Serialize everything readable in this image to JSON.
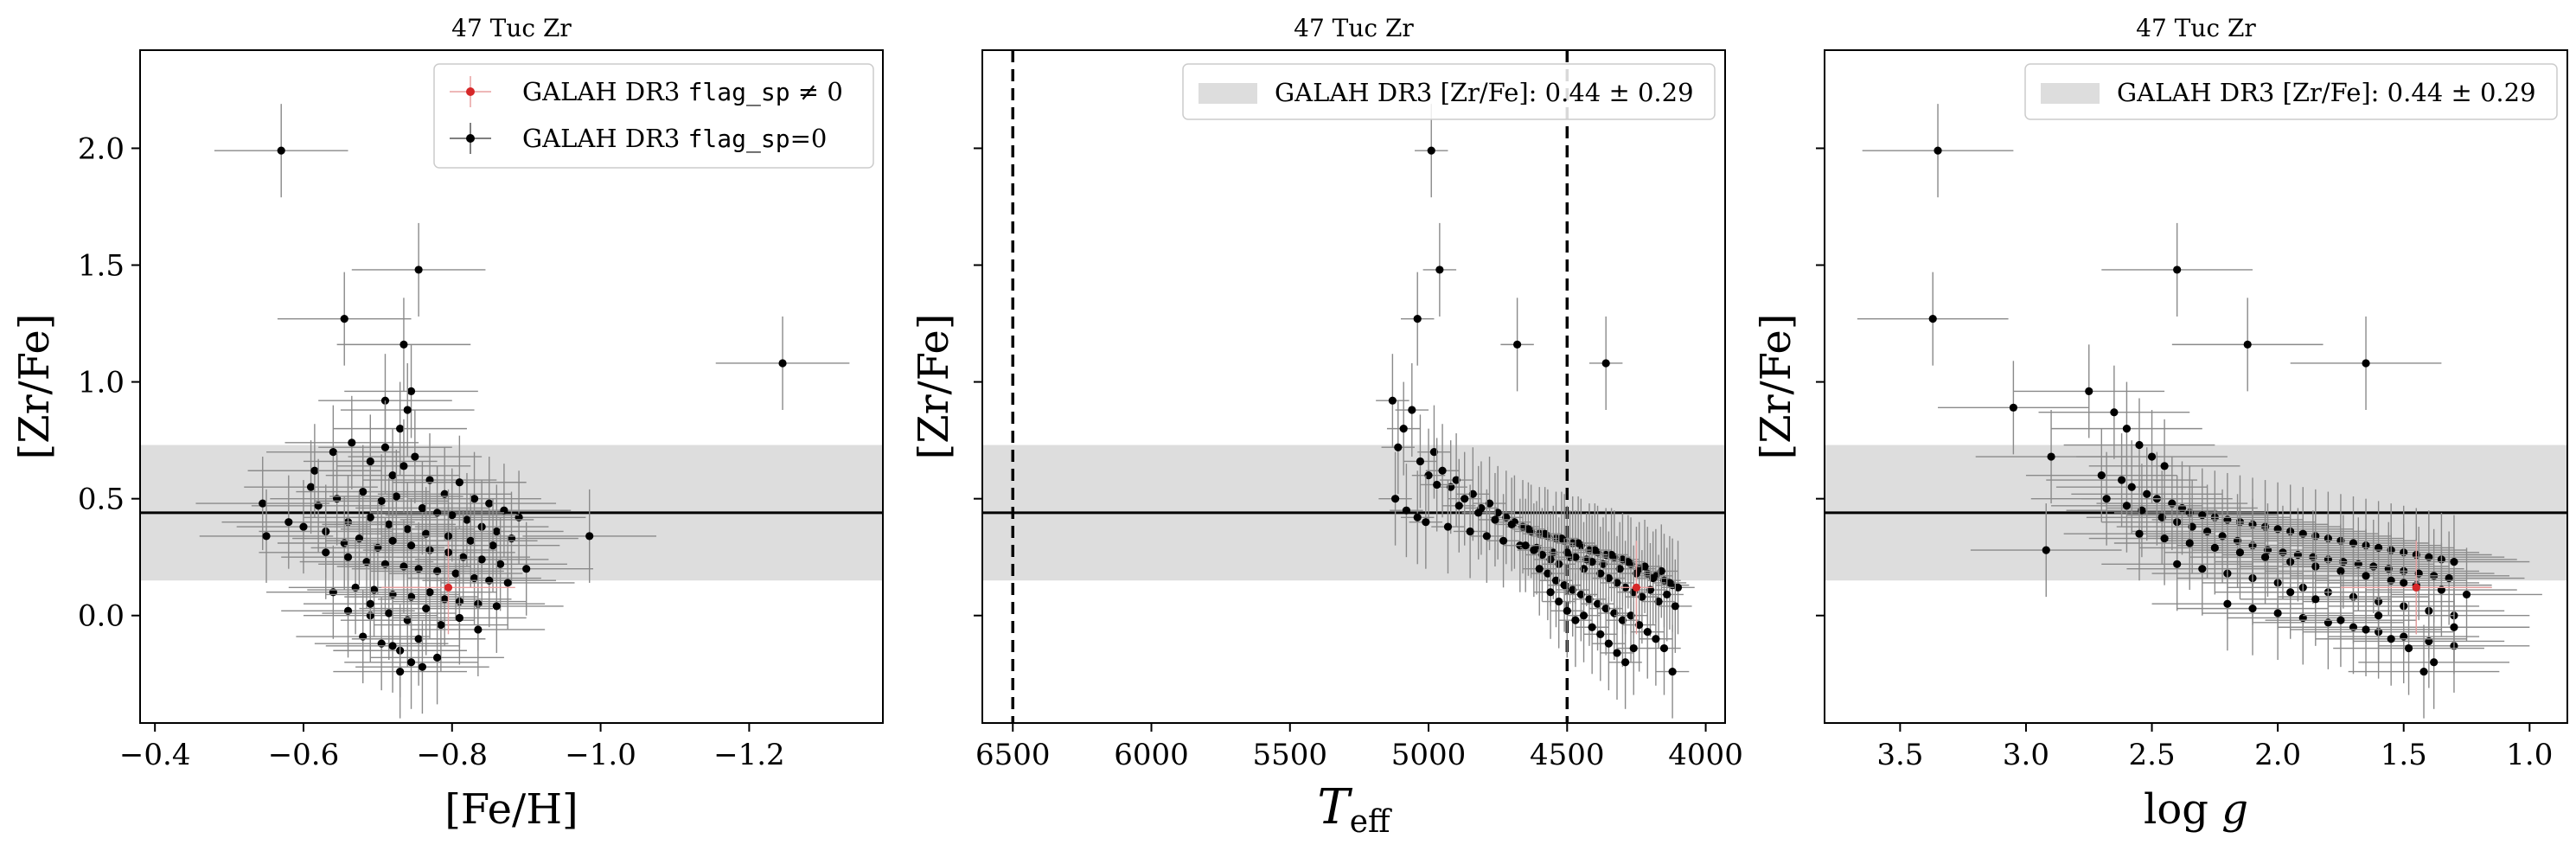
{
  "chart_data": [
    {
      "type": "scatter",
      "title": "47 Tuc Zr",
      "xlabel": "[Fe/H]",
      "ylabel": "[Zr/Fe]",
      "xlim": [
        -0.38,
        -1.38
      ],
      "ylim": [
        -0.46,
        2.42
      ],
      "x_inverted": true,
      "xticks": [
        -0.4,
        -0.6,
        -0.8,
        -1.0,
        -1.2
      ],
      "xtick_labels": [
        "−0.4",
        "−0.6",
        "−0.8",
        "−1.0",
        "−1.2"
      ],
      "yticks": [
        0.0,
        0.5,
        1.0,
        1.5,
        2.0
      ],
      "ytick_labels": [
        "0.0",
        "0.5",
        "1.0",
        "1.5",
        "2.0"
      ],
      "show_ytick_labels": true,
      "hline": 0.44,
      "band": [
        0.15,
        0.73
      ],
      "legend": {
        "placement": "top-right",
        "entries": [
          {
            "label": "GALAH DR3 ",
            "code": "flag_sp",
            "suffix": " ≠ 0",
            "color": "#d62728",
            "marker": "errorbar"
          },
          {
            "label": "GALAH DR3 ",
            "code": "flag_sp",
            "suffix": "=0",
            "color": "#000000",
            "marker": "errorbar"
          }
        ]
      },
      "series": [
        {
          "name": "GALAH DR3 flag_sp=0",
          "color": "#000000",
          "x": [
            -0.57,
            -0.655,
            -0.755,
            -1.245,
            -0.735,
            -0.71,
            -0.745,
            -0.74,
            -0.73,
            -0.61,
            -0.615,
            -0.64,
            -0.665,
            -0.69,
            -0.71,
            -0.72,
            -0.735,
            -0.75,
            -0.77,
            -0.79,
            -0.81,
            -0.83,
            -0.85,
            -0.87,
            -0.89,
            -0.62,
            -0.645,
            -0.68,
            -0.705,
            -0.725,
            -0.76,
            -0.78,
            -0.8,
            -0.82,
            -0.84,
            -0.86,
            -0.88,
            -0.66,
            -0.69,
            -0.715,
            -0.74,
            -0.765,
            -0.795,
            -0.825,
            -0.855,
            -0.545,
            -0.55,
            -0.58,
            -0.6,
            -0.63,
            -0.655,
            -0.675,
            -0.7,
            -0.72,
            -0.745,
            -0.77,
            -0.795,
            -0.815,
            -0.84,
            -0.865,
            -0.9,
            -0.985,
            -0.63,
            -0.66,
            -0.685,
            -0.71,
            -0.735,
            -0.755,
            -0.78,
            -0.805,
            -0.83,
            -0.85,
            -0.875,
            -0.64,
            -0.67,
            -0.695,
            -0.72,
            -0.745,
            -0.77,
            -0.79,
            -0.81,
            -0.835,
            -0.86,
            -0.66,
            -0.69,
            -0.715,
            -0.74,
            -0.765,
            -0.785,
            -0.81,
            -0.835,
            -0.68,
            -0.705,
            -0.73,
            -0.755,
            -0.78,
            -0.72,
            -0.745,
            -0.69,
            -0.73,
            -0.76
          ],
          "y": [
            1.99,
            1.27,
            1.48,
            1.08,
            1.16,
            0.92,
            0.96,
            0.88,
            0.8,
            0.55,
            0.62,
            0.7,
            0.74,
            0.66,
            0.72,
            0.6,
            0.64,
            0.68,
            0.58,
            0.52,
            0.57,
            0.5,
            0.48,
            0.45,
            0.42,
            0.47,
            0.5,
            0.53,
            0.49,
            0.51,
            0.46,
            0.44,
            0.43,
            0.41,
            0.38,
            0.36,
            0.33,
            0.4,
            0.42,
            0.39,
            0.37,
            0.35,
            0.34,
            0.32,
            0.3,
            0.48,
            0.34,
            0.4,
            0.38,
            0.36,
            0.31,
            0.33,
            0.29,
            0.32,
            0.3,
            0.28,
            0.27,
            0.25,
            0.24,
            0.22,
            0.2,
            0.34,
            0.27,
            0.25,
            0.23,
            0.22,
            0.21,
            0.2,
            0.19,
            0.18,
            0.16,
            0.15,
            0.14,
            0.1,
            0.12,
            0.11,
            0.09,
            0.08,
            0.1,
            0.07,
            0.06,
            0.05,
            0.04,
            0.02,
            0.0,
            0.01,
            -0.02,
            0.03,
            -0.04,
            -0.01,
            -0.06,
            -0.09,
            -0.12,
            -0.15,
            -0.1,
            -0.18,
            -0.13,
            -0.2,
            0.05,
            -0.24,
            -0.22
          ],
          "xerr": 0.09,
          "yerr": 0.2
        },
        {
          "name": "GALAH DR3 flag_sp ≠ 0",
          "color": "#d62728",
          "x": [
            -0.795
          ],
          "y": [
            0.12
          ],
          "xerr": 0.09,
          "yerr": 0.2
        }
      ]
    },
    {
      "type": "scatter",
      "title": "47 Tuc Zr",
      "xlabel": "T_eff",
      "xlabel_main": "T",
      "xlabel_sub": "eff",
      "ylabel": "[Zr/Fe]",
      "xlim": [
        6610,
        3930
      ],
      "ylim": [
        -0.46,
        2.42
      ],
      "x_inverted": true,
      "xticks": [
        6500,
        6000,
        5500,
        5000,
        4500,
        4000
      ],
      "xtick_labels": [
        "6500",
        "6000",
        "5500",
        "5000",
        "4500",
        "4000"
      ],
      "yticks": [
        0.0,
        0.5,
        1.0,
        1.5,
        2.0
      ],
      "show_ytick_labels": false,
      "vlines": [
        6500,
        4500
      ],
      "hline": 0.44,
      "band": [
        0.15,
        0.73
      ],
      "legend": {
        "placement": "top-right",
        "entries": [
          {
            "label": "GALAH DR3 [Zr/Fe]: 0.44 ± 0.29",
            "color": "#dddddd",
            "marker": "patch"
          }
        ]
      },
      "series": [
        {
          "name": "GALAH DR3 flag_sp=0",
          "color": "#000000",
          "x": [
            4990,
            4960,
            5040,
            4680,
            4360,
            5130,
            5110,
            5090,
            5060,
            5030,
            5000,
            4980,
            4950,
            4920,
            4900,
            4870,
            4840,
            4810,
            4780,
            4750,
            4720,
            4690,
            4660,
            4630,
            4600,
            4570,
            4540,
            4510,
            4480,
            4450,
            4420,
            4390,
            4360,
            4330,
            4300,
            4270,
            4240,
            4210,
            4180,
            4150,
            4120,
            5120,
            5080,
            5040,
            5010,
            4970,
            4930,
            4890,
            4850,
            4820,
            4790,
            4760,
            4730,
            4700,
            4670,
            4640,
            4610,
            4580,
            4550,
            4520,
            4490,
            4460,
            4430,
            4400,
            4370,
            4340,
            4310,
            4280,
            4250,
            4220,
            4190,
            4160,
            4130,
            4100,
            4650,
            4620,
            4590,
            4560,
            4530,
            4500,
            4470,
            4440,
            4410,
            4380,
            4350,
            4320,
            4290,
            4260,
            4230,
            4200,
            4170,
            4140,
            4110,
            4600,
            4570,
            4540,
            4510,
            4480,
            4450,
            4420,
            4390,
            4360,
            4330,
            4300,
            4270,
            4240,
            4210,
            4180,
            4150,
            4120,
            4560,
            4530,
            4500,
            4470,
            4440,
            4410,
            4380,
            4350,
            4320,
            4290,
            4260
          ],
          "y": [
            1.99,
            1.48,
            1.27,
            1.16,
            1.08,
            0.92,
            0.72,
            0.8,
            0.88,
            0.66,
            0.6,
            0.7,
            0.62,
            0.55,
            0.58,
            0.5,
            0.52,
            0.46,
            0.48,
            0.44,
            0.42,
            0.4,
            0.38,
            0.36,
            0.35,
            0.34,
            0.33,
            0.32,
            0.31,
            0.3,
            0.28,
            0.27,
            0.26,
            0.25,
            0.24,
            0.22,
            0.2,
            0.18,
            0.17,
            0.15,
            0.13,
            0.5,
            0.45,
            0.42,
            0.4,
            0.56,
            0.38,
            0.47,
            0.36,
            0.44,
            0.34,
            0.41,
            0.32,
            0.39,
            0.3,
            0.37,
            0.29,
            0.35,
            0.27,
            0.33,
            0.25,
            0.31,
            0.24,
            0.28,
            0.22,
            0.26,
            0.2,
            0.23,
            0.18,
            0.21,
            0.16,
            0.19,
            0.14,
            0.12,
            0.3,
            0.28,
            0.26,
            0.24,
            0.22,
            0.27,
            0.25,
            0.2,
            0.23,
            0.18,
            0.16,
            0.14,
            0.12,
            0.1,
            0.08,
            0.11,
            0.06,
            0.09,
            0.04,
            0.2,
            0.18,
            0.15,
            0.13,
            0.11,
            0.09,
            0.07,
            0.05,
            0.03,
            0.01,
            -0.02,
            0.0,
            -0.04,
            -0.07,
            -0.1,
            -0.14,
            -0.24,
            0.1,
            0.06,
            0.02,
            -0.02,
            0.0,
            -0.05,
            -0.08,
            -0.12,
            -0.16,
            -0.2,
            -0.14
          ],
          "xerr": 60,
          "yerr": 0.2
        },
        {
          "name": "GALAH DR3 flag_sp ≠ 0",
          "color": "#d62728",
          "x": [
            4250
          ],
          "y": [
            0.12
          ],
          "xerr": 60,
          "yerr": 0.2
        }
      ]
    },
    {
      "type": "scatter",
      "title": "47 Tuc Zr",
      "xlabel": "log g",
      "xlabel_main": "log",
      "xlabel_var": "g",
      "ylabel": "[Zr/Fe]",
      "xlim": [
        3.8,
        0.85
      ],
      "ylim": [
        -0.46,
        2.42
      ],
      "x_inverted": true,
      "xticks": [
        3.5,
        3.0,
        2.5,
        2.0,
        1.5,
        1.0
      ],
      "xtick_labels": [
        "3.5",
        "3.0",
        "2.5",
        "2.0",
        "1.5",
        "1.0"
      ],
      "yticks": [
        0.0,
        0.5,
        1.0,
        1.5,
        2.0
      ],
      "show_ytick_labels": false,
      "hline": 0.44,
      "band": [
        0.15,
        0.73
      ],
      "legend": {
        "placement": "top-right",
        "entries": [
          {
            "label": "GALAH DR3 [Zr/Fe]: 0.44 ± 0.29",
            "color": "#dddddd",
            "marker": "patch"
          }
        ]
      },
      "series": [
        {
          "name": "GALAH DR3 flag_sp=0",
          "color": "#000000",
          "x": [
            3.35,
            3.37,
            2.4,
            2.12,
            1.65,
            3.05,
            2.75,
            2.65,
            2.9,
            2.6,
            2.55,
            2.5,
            2.45,
            2.7,
            2.62,
            2.58,
            2.52,
            2.48,
            2.42,
            2.38,
            2.35,
            2.3,
            2.25,
            2.2,
            2.15,
            2.1,
            2.05,
            2.0,
            1.95,
            1.9,
            1.85,
            1.8,
            1.75,
            1.7,
            1.65,
            1.6,
            1.55,
            1.5,
            1.45,
            1.4,
            1.35,
            1.3,
            2.68,
            2.6,
            2.54,
            2.46,
            2.4,
            2.34,
            2.28,
            2.22,
            2.16,
            2.1,
            2.04,
            1.98,
            1.92,
            1.86,
            1.8,
            1.74,
            1.68,
            1.62,
            1.56,
            1.5,
            1.44,
            1.38,
            1.32,
            2.92,
            2.55,
            2.45,
            2.35,
            2.25,
            2.15,
            2.05,
            1.95,
            1.85,
            1.75,
            1.65,
            1.55,
            1.45,
            1.35,
            1.25,
            2.4,
            2.3,
            2.2,
            2.1,
            2.0,
            1.9,
            1.8,
            1.7,
            1.6,
            1.5,
            1.4,
            1.3,
            2.2,
            2.1,
            2.0,
            1.9,
            1.8,
            1.7,
            1.6,
            1.5,
            1.4,
            1.3,
            1.95,
            1.85,
            1.75,
            1.65,
            1.55,
            1.48,
            1.42,
            1.38,
            1.3,
            1.45,
            1.5,
            1.6
          ],
          "y": [
            1.99,
            1.27,
            1.48,
            1.16,
            1.08,
            0.89,
            0.96,
            0.87,
            0.68,
            0.8,
            0.73,
            0.68,
            0.64,
            0.6,
            0.58,
            0.55,
            0.52,
            0.5,
            0.48,
            0.46,
            0.44,
            0.43,
            0.42,
            0.41,
            0.4,
            0.39,
            0.38,
            0.37,
            0.36,
            0.35,
            0.34,
            0.33,
            0.32,
            0.31,
            0.3,
            0.29,
            0.28,
            0.27,
            0.26,
            0.25,
            0.24,
            0.23,
            0.5,
            0.47,
            0.45,
            0.42,
            0.4,
            0.38,
            0.36,
            0.34,
            0.32,
            0.3,
            0.28,
            0.27,
            0.26,
            0.25,
            0.24,
            0.23,
            0.22,
            0.21,
            0.2,
            0.19,
            0.18,
            0.17,
            0.16,
            0.28,
            0.35,
            0.33,
            0.31,
            0.29,
            0.27,
            0.25,
            0.23,
            0.21,
            0.19,
            0.17,
            0.15,
            0.13,
            0.11,
            0.09,
            0.22,
            0.2,
            0.18,
            0.16,
            0.14,
            0.12,
            0.1,
            0.08,
            0.06,
            0.04,
            0.02,
            0.0,
            0.05,
            0.03,
            0.01,
            -0.01,
            -0.03,
            -0.05,
            -0.07,
            -0.09,
            -0.11,
            -0.13,
            0.1,
            0.07,
            -0.02,
            -0.06,
            -0.1,
            -0.14,
            -0.24,
            -0.2,
            -0.05,
            0.12,
            0.14,
            0.0
          ],
          "xerr": 0.3,
          "yerr": 0.2
        },
        {
          "name": "GALAH DR3 flag_sp ≠ 0",
          "color": "#d62728",
          "x": [
            1.45
          ],
          "y": [
            0.12
          ],
          "xerr": 0.3,
          "yerr": 0.2
        }
      ]
    }
  ]
}
